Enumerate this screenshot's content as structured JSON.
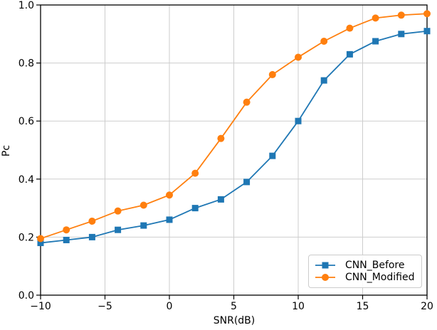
{
  "chart_data": {
    "type": "line",
    "title": "",
    "xlabel": "SNR(dB)",
    "ylabel": "Pc",
    "xlim": [
      -10,
      20
    ],
    "ylim": [
      0.0,
      1.0
    ],
    "xticks": [
      -10,
      -5,
      0,
      5,
      10,
      15,
      20
    ],
    "yticks": [
      0.0,
      0.2,
      0.4,
      0.6,
      0.8,
      1.0
    ],
    "grid": true,
    "grid_color": "#cdcdcd",
    "spine_color": "#000000",
    "legend_position": "lower right",
    "x": [
      -10,
      -8,
      -6,
      -4,
      -2,
      0,
      2,
      4,
      6,
      8,
      10,
      12,
      14,
      16,
      18,
      20
    ],
    "series": [
      {
        "name": "CNN_Before",
        "color": "#1f77b4",
        "marker": "square",
        "values": [
          0.18,
          0.19,
          0.2,
          0.225,
          0.24,
          0.26,
          0.3,
          0.33,
          0.39,
          0.48,
          0.6,
          0.74,
          0.83,
          0.875,
          0.9,
          0.91
        ]
      },
      {
        "name": "CNN_Modified",
        "color": "#ff7f0e",
        "marker": "circle",
        "values": [
          0.195,
          0.225,
          0.255,
          0.29,
          0.31,
          0.345,
          0.42,
          0.54,
          0.665,
          0.76,
          0.82,
          0.875,
          0.92,
          0.955,
          0.965,
          0.97
        ]
      }
    ]
  }
}
